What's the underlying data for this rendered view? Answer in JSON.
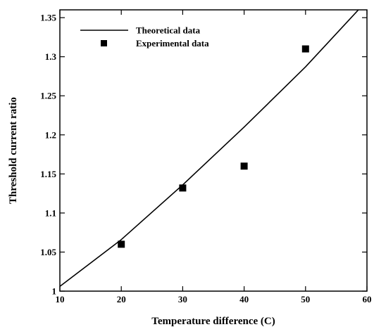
{
  "chart_data": {
    "type": "scatter",
    "title": "",
    "xlabel": "Temperature difference (C)",
    "ylabel": "Threshold current ratio",
    "xlim": [
      10,
      60
    ],
    "ylim": [
      1,
      1.36
    ],
    "xticks": [
      10,
      20,
      30,
      40,
      50,
      60
    ],
    "yticks": [
      1,
      1.05,
      1.1,
      1.15,
      1.2,
      1.25,
      1.3,
      1.35
    ],
    "xtick_labels": [
      "10",
      "20",
      "30",
      "40",
      "50",
      "60"
    ],
    "ytick_labels": [
      "1",
      "1.05",
      "1.1",
      "1.15",
      "1.2",
      "1.25",
      "1.3",
      "1.35"
    ],
    "grid": false,
    "legend_position": "top-left",
    "series": [
      {
        "name": "Theoretical data",
        "kind": "line",
        "color": "#000000",
        "x": [
          10,
          20,
          30,
          40,
          50,
          58.6
        ],
        "y": [
          1.006,
          1.066,
          1.136,
          1.21,
          1.287,
          1.36
        ]
      },
      {
        "name": "Experimental data",
        "kind": "marker",
        "marker": "square",
        "color": "#000000",
        "x": [
          20,
          30,
          40,
          50
        ],
        "y": [
          1.06,
          1.132,
          1.16,
          1.31
        ]
      }
    ]
  }
}
